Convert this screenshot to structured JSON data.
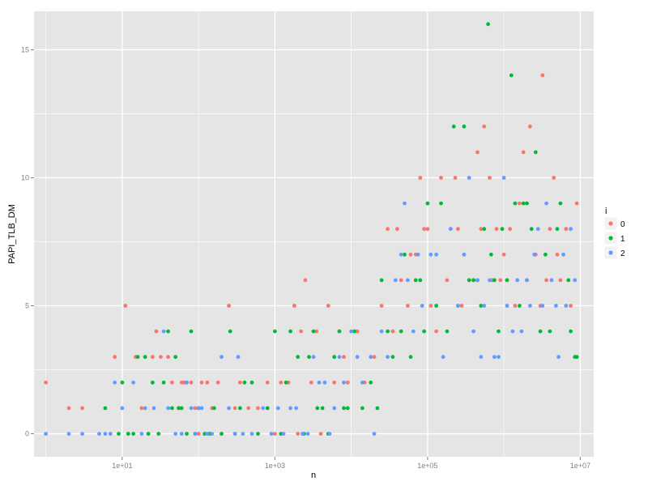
{
  "chart_data": {
    "type": "scatter",
    "title": "",
    "xlabel": "n",
    "ylabel": "PAPI_TLB_DM",
    "x_scale": "log10",
    "xlim": [
      0.7,
      15000000
    ],
    "ylim": [
      -0.9,
      16.5
    ],
    "x_ticks": [
      10,
      1000,
      100000,
      10000000
    ],
    "x_tick_labels": [
      "1e+01",
      "1e+03",
      "1e+05",
      "1e+07"
    ],
    "y_ticks": [
      0,
      5,
      10,
      15
    ],
    "y_tick_labels": [
      "0",
      "5",
      "10",
      "15"
    ],
    "grid": true,
    "legend": {
      "title": "i",
      "position": "right",
      "entries": [
        "0",
        "1",
        "2"
      ]
    },
    "colors": {
      "0": "#F8766D",
      "1": "#00BA38",
      "2": "#619CFF",
      "panel": "#E5E5E5",
      "grid": "#FFFFFF"
    },
    "series": [
      {
        "name": "0",
        "points": [
          [
            1,
            2
          ],
          [
            2,
            1
          ],
          [
            3,
            1
          ],
          [
            8,
            3
          ],
          [
            11,
            5
          ],
          [
            12,
            0
          ],
          [
            15,
            3
          ],
          [
            18,
            1
          ],
          [
            25,
            3
          ],
          [
            28,
            4
          ],
          [
            32,
            3
          ],
          [
            40,
            3
          ],
          [
            45,
            2
          ],
          [
            55,
            1
          ],
          [
            60,
            2
          ],
          [
            65,
            2
          ],
          [
            70,
            2
          ],
          [
            80,
            2
          ],
          [
            90,
            1
          ],
          [
            100,
            0
          ],
          [
            110,
            2
          ],
          [
            130,
            2
          ],
          [
            150,
            1
          ],
          [
            180,
            2
          ],
          [
            200,
            0
          ],
          [
            250,
            5
          ],
          [
            300,
            1
          ],
          [
            350,
            2
          ],
          [
            450,
            1
          ],
          [
            600,
            1
          ],
          [
            800,
            2
          ],
          [
            1000,
            0
          ],
          [
            1200,
            2
          ],
          [
            1500,
            2
          ],
          [
            1800,
            5
          ],
          [
            2000,
            0
          ],
          [
            2200,
            4
          ],
          [
            2500,
            6
          ],
          [
            3000,
            2
          ],
          [
            3500,
            4
          ],
          [
            4000,
            0
          ],
          [
            5000,
            5
          ],
          [
            6000,
            2
          ],
          [
            7000,
            4
          ],
          [
            8000,
            3
          ],
          [
            9000,
            2
          ],
          [
            12000,
            4
          ],
          [
            15000,
            2
          ],
          [
            20000,
            3
          ],
          [
            25000,
            5
          ],
          [
            30000,
            8
          ],
          [
            35000,
            4
          ],
          [
            40000,
            8
          ],
          [
            45000,
            6
          ],
          [
            55000,
            5
          ],
          [
            60000,
            7
          ],
          [
            70000,
            7
          ],
          [
            80000,
            10
          ],
          [
            90000,
            8
          ],
          [
            100000,
            8
          ],
          [
            110000,
            5
          ],
          [
            130000,
            4
          ],
          [
            150000,
            10
          ],
          [
            180000,
            6
          ],
          [
            200000,
            8
          ],
          [
            230000,
            10
          ],
          [
            250000,
            8
          ],
          [
            280000,
            5
          ],
          [
            300000,
            7
          ],
          [
            350000,
            6
          ],
          [
            400000,
            6
          ],
          [
            450000,
            11
          ],
          [
            500000,
            8
          ],
          [
            550000,
            12
          ],
          [
            650000,
            10
          ],
          [
            700000,
            6
          ],
          [
            800000,
            8
          ],
          [
            900000,
            6
          ],
          [
            1000000,
            7
          ],
          [
            1100000,
            6
          ],
          [
            1200000,
            8
          ],
          [
            1400000,
            5
          ],
          [
            1600000,
            9
          ],
          [
            1800000,
            11
          ],
          [
            2000000,
            6
          ],
          [
            2200000,
            12
          ],
          [
            2600000,
            7
          ],
          [
            3000000,
            5
          ],
          [
            3200000,
            14
          ],
          [
            3600000,
            6
          ],
          [
            4000000,
            8
          ],
          [
            4500000,
            10
          ],
          [
            5000000,
            7
          ],
          [
            5500000,
            6
          ],
          [
            6500000,
            8
          ],
          [
            7500000,
            5
          ],
          [
            9000000,
            9
          ]
        ]
      },
      {
        "name": "1",
        "points": [
          [
            6,
            1
          ],
          [
            9,
            0
          ],
          [
            10,
            2
          ],
          [
            12,
            0
          ],
          [
            14,
            0
          ],
          [
            16,
            3
          ],
          [
            20,
            3
          ],
          [
            22,
            0
          ],
          [
            25,
            2
          ],
          [
            30,
            0
          ],
          [
            35,
            2
          ],
          [
            40,
            4
          ],
          [
            45,
            1
          ],
          [
            50,
            3
          ],
          [
            55,
            1
          ],
          [
            60,
            1
          ],
          [
            70,
            0
          ],
          [
            80,
            4
          ],
          [
            90,
            0
          ],
          [
            100,
            1
          ],
          [
            120,
            0
          ],
          [
            140,
            0
          ],
          [
            160,
            1
          ],
          [
            200,
            0
          ],
          [
            260,
            4
          ],
          [
            300,
            0
          ],
          [
            350,
            1
          ],
          [
            400,
            2
          ],
          [
            500,
            2
          ],
          [
            600,
            0
          ],
          [
            800,
            1
          ],
          [
            1000,
            4
          ],
          [
            1200,
            0
          ],
          [
            1400,
            2
          ],
          [
            1600,
            4
          ],
          [
            2000,
            3
          ],
          [
            2400,
            0
          ],
          [
            2800,
            3
          ],
          [
            3200,
            4
          ],
          [
            3600,
            1
          ],
          [
            4200,
            1
          ],
          [
            5000,
            0
          ],
          [
            6000,
            3
          ],
          [
            7000,
            4
          ],
          [
            8000,
            1
          ],
          [
            9000,
            1
          ],
          [
            11000,
            4
          ],
          [
            14000,
            1
          ],
          [
            18000,
            2
          ],
          [
            22000,
            1
          ],
          [
            25000,
            6
          ],
          [
            30000,
            4
          ],
          [
            35000,
            3
          ],
          [
            45000,
            4
          ],
          [
            50000,
            7
          ],
          [
            60000,
            3
          ],
          [
            70000,
            6
          ],
          [
            80000,
            6
          ],
          [
            90000,
            4
          ],
          [
            100000,
            9
          ],
          [
            130000,
            5
          ],
          [
            150000,
            9
          ],
          [
            180000,
            4
          ],
          [
            220000,
            12
          ],
          [
            250000,
            5
          ],
          [
            300000,
            12
          ],
          [
            350000,
            6
          ],
          [
            400000,
            6
          ],
          [
            450000,
            6
          ],
          [
            500000,
            5
          ],
          [
            550000,
            8
          ],
          [
            620000,
            16
          ],
          [
            680000,
            7
          ],
          [
            750000,
            6
          ],
          [
            850000,
            4
          ],
          [
            950000,
            8
          ],
          [
            1100000,
            6
          ],
          [
            1250000,
            14
          ],
          [
            1400000,
            9
          ],
          [
            1600000,
            5
          ],
          [
            1800000,
            9
          ],
          [
            2000000,
            9
          ],
          [
            2300000,
            8
          ],
          [
            2600000,
            11
          ],
          [
            3000000,
            4
          ],
          [
            3500000,
            7
          ],
          [
            4000000,
            4
          ],
          [
            5000000,
            8
          ],
          [
            5500000,
            9
          ],
          [
            7000000,
            6
          ],
          [
            7500000,
            4
          ],
          [
            8500000,
            3
          ],
          [
            9000000,
            3
          ]
        ]
      },
      {
        "name": "2",
        "points": [
          [
            1,
            0
          ],
          [
            2,
            0
          ],
          [
            3,
            0
          ],
          [
            5,
            0
          ],
          [
            6,
            0
          ],
          [
            7,
            0
          ],
          [
            8,
            2
          ],
          [
            10,
            1
          ],
          [
            14,
            2
          ],
          [
            18,
            0
          ],
          [
            20,
            1
          ],
          [
            26,
            1
          ],
          [
            35,
            4
          ],
          [
            40,
            1
          ],
          [
            50,
            0
          ],
          [
            60,
            0
          ],
          [
            70,
            2
          ],
          [
            80,
            1
          ],
          [
            90,
            0
          ],
          [
            100,
            1
          ],
          [
            110,
            1
          ],
          [
            130,
            0
          ],
          [
            150,
            0
          ],
          [
            200,
            3
          ],
          [
            250,
            1
          ],
          [
            300,
            0
          ],
          [
            330,
            3
          ],
          [
            380,
            0
          ],
          [
            500,
            0
          ],
          [
            700,
            1
          ],
          [
            900,
            0
          ],
          [
            1100,
            1
          ],
          [
            1300,
            0
          ],
          [
            1600,
            1
          ],
          [
            1900,
            1
          ],
          [
            2300,
            0
          ],
          [
            2700,
            0
          ],
          [
            3200,
            3
          ],
          [
            3800,
            2
          ],
          [
            4500,
            2
          ],
          [
            5200,
            0
          ],
          [
            6000,
            1
          ],
          [
            7000,
            3
          ],
          [
            8000,
            2
          ],
          [
            10000,
            4
          ],
          [
            12000,
            3
          ],
          [
            14000,
            2
          ],
          [
            18000,
            3
          ],
          [
            20000,
            0
          ],
          [
            25000,
            4
          ],
          [
            30000,
            3
          ],
          [
            38000,
            6
          ],
          [
            45000,
            7
          ],
          [
            50000,
            9
          ],
          [
            55000,
            6
          ],
          [
            65000,
            4
          ],
          [
            75000,
            7
          ],
          [
            85000,
            5
          ],
          [
            110000,
            7
          ],
          [
            130000,
            7
          ],
          [
            160000,
            3
          ],
          [
            200000,
            8
          ],
          [
            250000,
            5
          ],
          [
            300000,
            7
          ],
          [
            350000,
            10
          ],
          [
            400000,
            4
          ],
          [
            450000,
            6
          ],
          [
            500000,
            3
          ],
          [
            550000,
            5
          ],
          [
            650000,
            6
          ],
          [
            750000,
            3
          ],
          [
            850000,
            3
          ],
          [
            1000000,
            10
          ],
          [
            1100000,
            5
          ],
          [
            1300000,
            4
          ],
          [
            1500000,
            6
          ],
          [
            1700000,
            4
          ],
          [
            2000000,
            6
          ],
          [
            2200000,
            5
          ],
          [
            2500000,
            7
          ],
          [
            2800000,
            8
          ],
          [
            3200000,
            5
          ],
          [
            3600000,
            9
          ],
          [
            4200000,
            6
          ],
          [
            4800000,
            5
          ],
          [
            5200000,
            3
          ],
          [
            6000000,
            7
          ],
          [
            6500000,
            5
          ],
          [
            7500000,
            8
          ],
          [
            8500000,
            6
          ]
        ]
      }
    ]
  }
}
